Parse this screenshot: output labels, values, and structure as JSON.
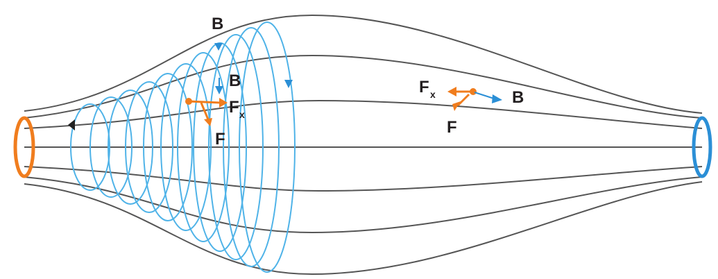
{
  "labels": {
    "b_top": "B",
    "b_mid": "B",
    "fx_left_main": "F",
    "fx_left_sub": "x",
    "f_left": "F",
    "fx_right_main": "F",
    "fx_right_sub": "x",
    "b_right": "B",
    "f_right": "F"
  },
  "colors": {
    "field_lines": "#555555",
    "helix": "#4fb3e8",
    "force": "#f07d1e",
    "left_coil": "#f07d1e",
    "right_coil": "#2b8fd6",
    "b_vector": "#2b8fd6",
    "label_text": "#231f20"
  }
}
